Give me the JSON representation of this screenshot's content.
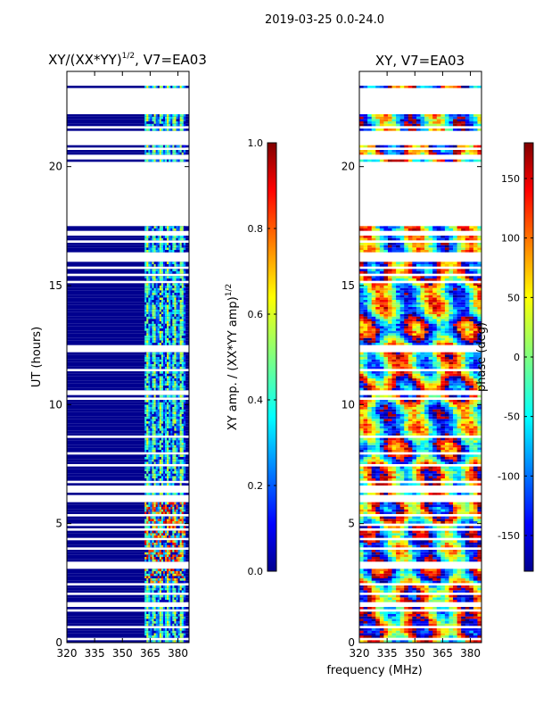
{
  "figure": {
    "suptitle": "2019-03-25 0.0-24.0",
    "shared_xlabel": "frequency (MHz)"
  },
  "chart_data": [
    {
      "type": "heatmap",
      "title_main": "XY/(XX*YY)",
      "title_exp": "1/2",
      "title_tail": ", V7=EA03",
      "xlabel": "frequency (MHz)",
      "ylabel": "UT (hours)",
      "xlim": [
        320,
        386
      ],
      "ylim": [
        0,
        24
      ],
      "xticks": [
        "320",
        "335",
        "350",
        "365",
        "380"
      ],
      "xtick_values": [
        320,
        335,
        350,
        365,
        380
      ],
      "yticks": [
        "0",
        "5",
        "10",
        "15",
        "20"
      ],
      "ytick_values": [
        0,
        5,
        10,
        15,
        20
      ],
      "colormap": "jet",
      "flagged_ut_gaps": [
        [
          17.5,
          20.2
        ],
        [
          21.0,
          21.5
        ],
        [
          22.3,
          23.2
        ],
        [
          23.4,
          24.0
        ]
      ],
      "signal_band_mhz": [
        362,
        384
      ],
      "colorbar": {
        "label_main": "XY amp. / (XX*YY amp)",
        "label_exp": "1/2",
        "range": [
          0.0,
          1.0
        ],
        "ticks": [
          "0.0",
          "0.2",
          "0.4",
          "0.6",
          "0.8",
          "1.0"
        ],
        "tick_values": [
          0.0,
          0.2,
          0.4,
          0.6,
          0.8,
          1.0
        ]
      }
    },
    {
      "type": "heatmap",
      "title": "XY, V7=EA03",
      "xlabel": "frequency (MHz)",
      "xlim": [
        320,
        386
      ],
      "ylim": [
        0,
        24
      ],
      "xticks": [
        "320",
        "335",
        "350",
        "365",
        "380"
      ],
      "xtick_values": [
        320,
        335,
        350,
        365,
        380
      ],
      "yticks": [
        "0",
        "5",
        "10",
        "15",
        "20"
      ],
      "ytick_values": [
        0,
        5,
        10,
        15,
        20
      ],
      "colormap": "jet",
      "flagged_ut_gaps": [
        [
          17.5,
          20.2
        ],
        [
          21.0,
          21.5
        ],
        [
          22.3,
          23.2
        ],
        [
          23.4,
          24.0
        ]
      ],
      "colorbar": {
        "label": "phase (deg)",
        "range": [
          -180,
          180
        ],
        "ticks": [
          "-150",
          "-100",
          "-50",
          "0",
          "50",
          "100",
          "150"
        ],
        "tick_values": [
          -150,
          -100,
          -50,
          0,
          50,
          100,
          150
        ]
      }
    }
  ]
}
